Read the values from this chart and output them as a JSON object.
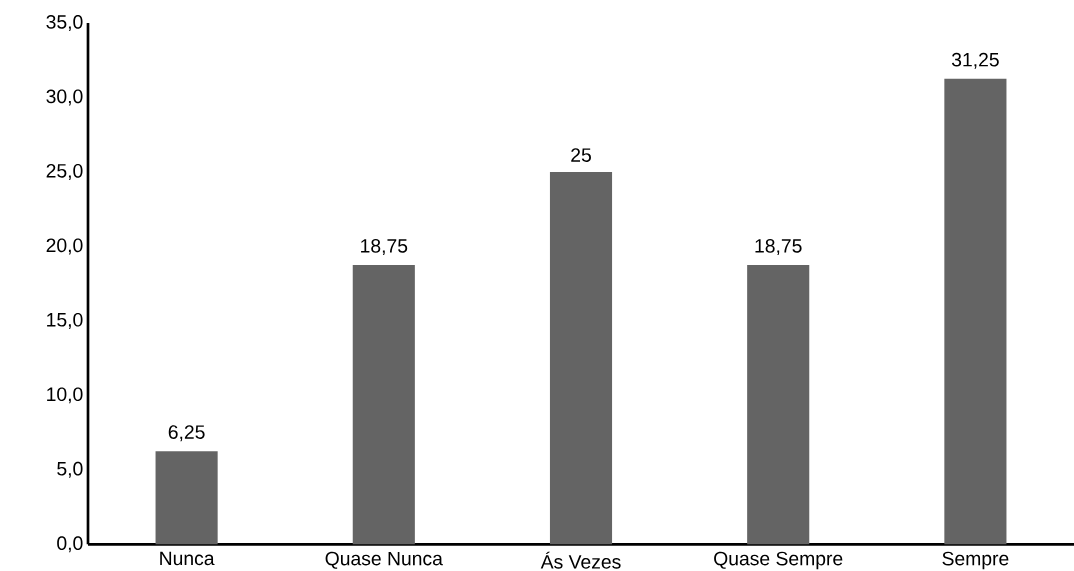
{
  "chart_data": {
    "type": "bar",
    "categories": [
      "Nunca",
      "Quase Nunca",
      "Ás Vezes",
      "Quase Sempre",
      "Sempre"
    ],
    "values": [
      6.25,
      18.75,
      25,
      18.75,
      31.25
    ],
    "value_labels": [
      "6,25",
      "18,75",
      "25",
      "18,75",
      "31,25"
    ],
    "color": "#646464",
    "ylim": [
      0,
      35
    ],
    "yticks": [
      {
        "value": 0,
        "label": "0,0"
      },
      {
        "value": 5,
        "label": "5,0"
      },
      {
        "value": 10,
        "label": "10,0"
      },
      {
        "value": 15,
        "label": "15,0"
      },
      {
        "value": 20,
        "label": "20,0"
      },
      {
        "value": 25,
        "label": "25,0"
      },
      {
        "value": 30,
        "label": "30,0"
      },
      {
        "value": 35,
        "label": "35,0"
      }
    ]
  }
}
